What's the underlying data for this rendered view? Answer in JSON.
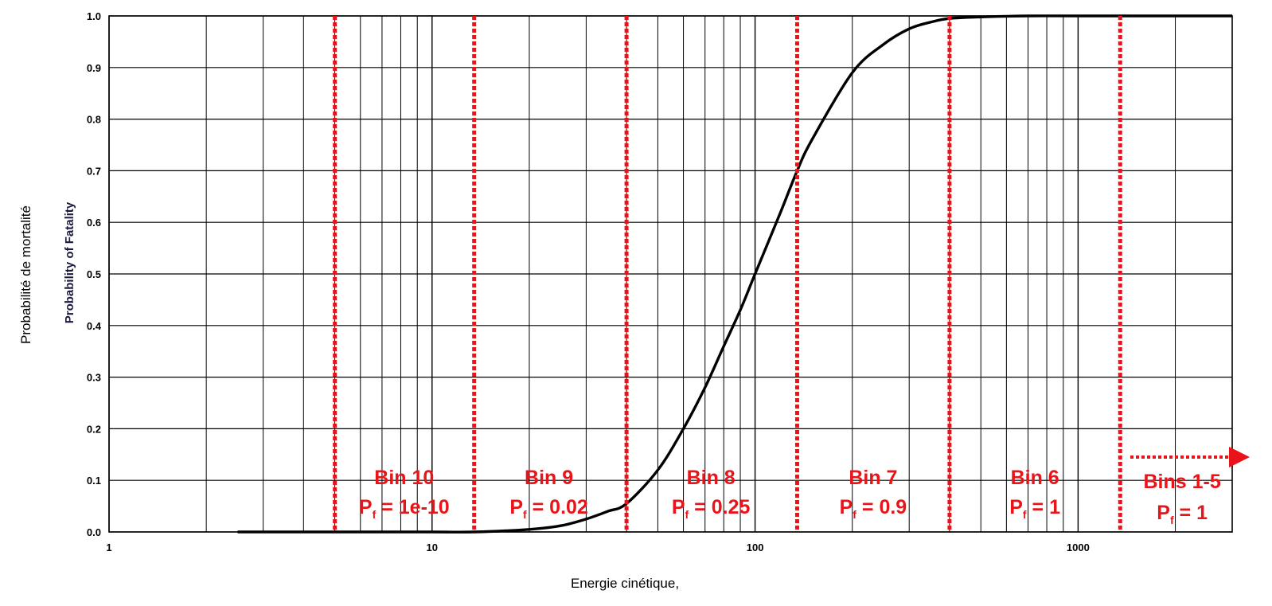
{
  "chart_data": {
    "type": "line",
    "xscale": "log",
    "xlim": [
      1,
      3000
    ],
    "ylim": [
      0,
      1
    ],
    "grid": true,
    "xlabel": "Energie cinétique,",
    "ylabel": "Probabilité de mortalité",
    "ylabel_overlay": "Probability of Fatality",
    "xticks": [
      "1",
      "10",
      "100",
      "1000"
    ],
    "yticks": [
      "0.0",
      "0.1",
      "0.2",
      "0.3",
      "0.4",
      "0.5",
      "0.6",
      "0.7",
      "0.8",
      "0.9",
      "1.0"
    ],
    "series": [
      {
        "color": "#000000",
        "x": [
          2.5,
          5,
          10,
          13.5,
          20,
          25,
          30,
          35,
          40,
          50,
          60,
          70,
          80,
          90,
          100,
          120,
          135,
          150,
          200,
          250,
          300,
          350,
          400,
          500,
          700,
          1000,
          3000
        ],
        "y": [
          0.0,
          0.0,
          0.0,
          0.0,
          0.005,
          0.012,
          0.025,
          0.04,
          0.055,
          0.12,
          0.2,
          0.28,
          0.36,
          0.43,
          0.5,
          0.62,
          0.7,
          0.76,
          0.89,
          0.945,
          0.975,
          0.988,
          0.995,
          0.998,
          1.0,
          1.0,
          1.0
        ]
      }
    ],
    "bin_boundaries": [
      5,
      13.5,
      40,
      135,
      400,
      1350
    ],
    "bins": [
      {
        "name": "Bin 10",
        "pf_symbol": "P",
        "pf_sub": "f",
        "pf_value": " = 1e-10",
        "x_center": 8.2
      },
      {
        "name": "Bin 9",
        "pf_symbol": "P",
        "pf_sub": "f",
        "pf_value": " = 0.02",
        "x_center": 23
      },
      {
        "name": "Bin 8",
        "pf_symbol": "P",
        "pf_sub": "f",
        "pf_value": " = 0.25",
        "x_center": 73
      },
      {
        "name": "Bin 7",
        "pf_symbol": "P",
        "pf_sub": "f",
        "pf_value": " = 0.9",
        "x_center": 232
      },
      {
        "name": "Bin 6",
        "pf_symbol": "P",
        "pf_sub": "f",
        "pf_value": " = 1",
        "x_center": 735
      },
      {
        "name": "Bins 1-5",
        "pf_symbol": "P",
        "pf_sub": "f",
        "pf_value": " = 1",
        "x_center": 2100
      }
    ],
    "boundary_color": "#e8141a"
  }
}
